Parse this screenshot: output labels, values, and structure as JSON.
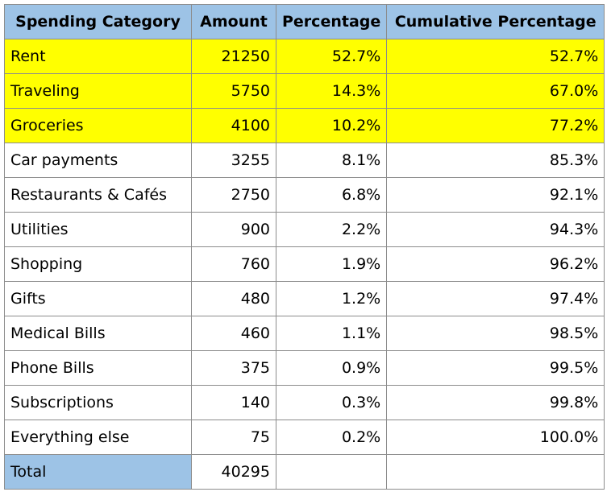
{
  "table": {
    "headers": [
      "Spending Category",
      "Amount",
      "Percentage",
      "Cumulative Percentage"
    ],
    "rows": [
      {
        "category": "Rent",
        "amount": "21250",
        "percentage": "52.7%",
        "cumulative": "52.7%",
        "highlight": true
      },
      {
        "category": "Traveling",
        "amount": "5750",
        "percentage": "14.3%",
        "cumulative": "67.0%",
        "highlight": true
      },
      {
        "category": "Groceries",
        "amount": "4100",
        "percentage": "10.2%",
        "cumulative": "77.2%",
        "highlight": true
      },
      {
        "category": "Car payments",
        "amount": "3255",
        "percentage": "8.1%",
        "cumulative": "85.3%",
        "highlight": false
      },
      {
        "category": "Restaurants & Cafés",
        "amount": "2750",
        "percentage": "6.8%",
        "cumulative": "92.1%",
        "highlight": false
      },
      {
        "category": "Utilities",
        "amount": "900",
        "percentage": "2.2%",
        "cumulative": "94.3%",
        "highlight": false
      },
      {
        "category": "Shopping",
        "amount": "760",
        "percentage": "1.9%",
        "cumulative": "96.2%",
        "highlight": false
      },
      {
        "category": "Gifts",
        "amount": "480",
        "percentage": "1.2%",
        "cumulative": "97.4%",
        "highlight": false
      },
      {
        "category": "Medical Bills",
        "amount": "460",
        "percentage": "1.1%",
        "cumulative": "98.5%",
        "highlight": false
      },
      {
        "category": "Phone Bills",
        "amount": "375",
        "percentage": "0.9%",
        "cumulative": "99.5%",
        "highlight": false
      },
      {
        "category": "Subscriptions",
        "amount": "140",
        "percentage": "0.3%",
        "cumulative": "99.8%",
        "highlight": false
      },
      {
        "category": "Everything else",
        "amount": "75",
        "percentage": "0.2%",
        "cumulative": "100.0%",
        "highlight": false
      }
    ],
    "total": {
      "label": "Total",
      "amount": "40295",
      "percentage": "",
      "cumulative": ""
    }
  },
  "colors": {
    "header_bg": "#9dc3e6",
    "highlight_bg": "#ffff00",
    "border": "#8c8c8c"
  }
}
